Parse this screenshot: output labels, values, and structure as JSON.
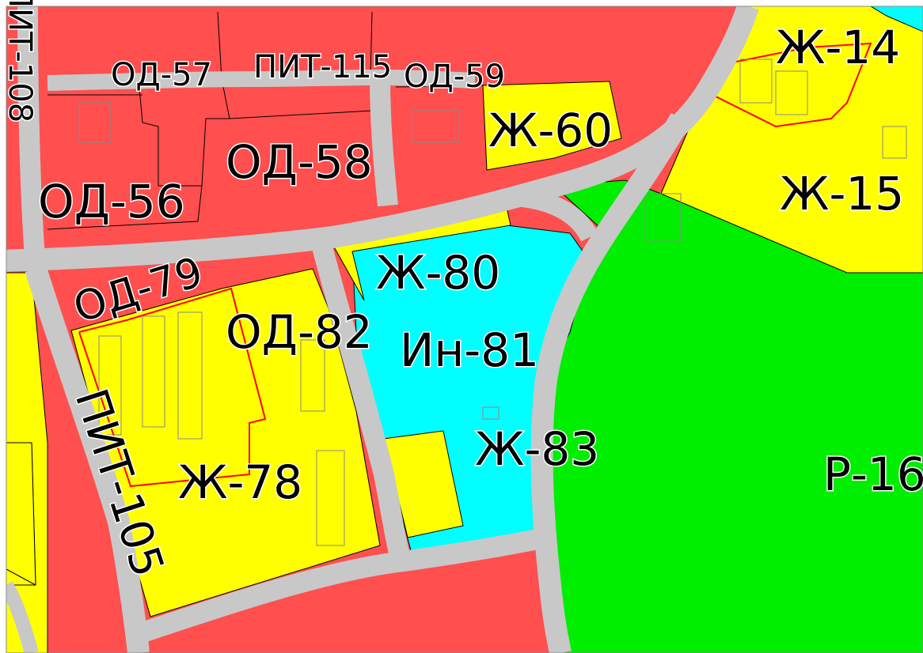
{
  "colors": {
    "public_business": "#ff4f4f",
    "residential": "#ffff00",
    "engineering": "#00ffff",
    "recreation": "#00ee00",
    "road": "#c8c8c8",
    "boundary": "#ff0000",
    "parcel_outline": "#8a8a8a"
  },
  "zones": {
    "od56": "ОД-56",
    "od57": "ОД-57",
    "od58": "ОД-58",
    "od59": "ОД-59",
    "od79": "ОД-79",
    "od82": "ОД-82",
    "zh14": "Ж-14",
    "zh15": "Ж-15",
    "zh60": "Ж-60",
    "zh78": "Ж-78",
    "zh80": "Ж-80",
    "zh83": "Ж-83",
    "in81": "Ин-81",
    "r16": "Р-16"
  },
  "roads": {
    "pit105": "ПИТ-105",
    "pit108": "ПИТ-108",
    "pit115": "ПИТ-115"
  }
}
